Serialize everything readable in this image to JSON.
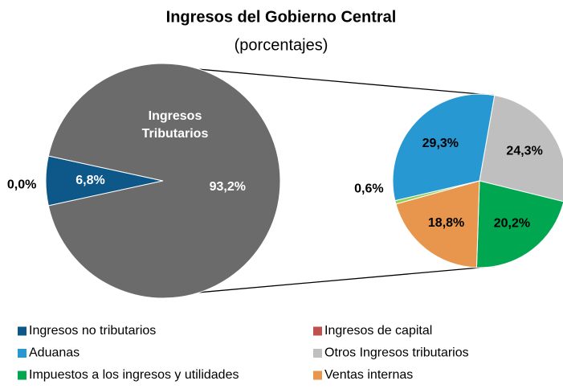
{
  "chart_data": {
    "type": "pie-of-pie",
    "title": "Ingresos del Gobierno Central",
    "subtitle": "(porcentajes)",
    "split": 2,
    "primary": {
      "categories": [
        "Ingresos no tributarios",
        "Ingresos de capital",
        "Ingresos Tributarios"
      ],
      "values": [
        6.8,
        0.0,
        93.2
      ],
      "value_labels": [
        "6,8%",
        "0,0%",
        "93,2%"
      ],
      "colors": [
        "#0d5789",
        "#c0504d",
        "#6b6b6b"
      ]
    },
    "secondary": {
      "categories": [
        "Otros Ingresos tributarios",
        "Impuestos a los ingresos y utilidades",
        "Ventas internas",
        null,
        "Aduanas"
      ],
      "values": [
        24.3,
        20.2,
        18.8,
        0.6,
        29.3
      ],
      "value_labels": [
        "24,3%",
        "20,2%",
        "18,8%",
        "0,6%",
        "29,3%"
      ],
      "colors": [
        "#bfbfbf",
        "#00a650",
        "#e8964d",
        "#92d050",
        "#2898d2"
      ]
    }
  }
}
